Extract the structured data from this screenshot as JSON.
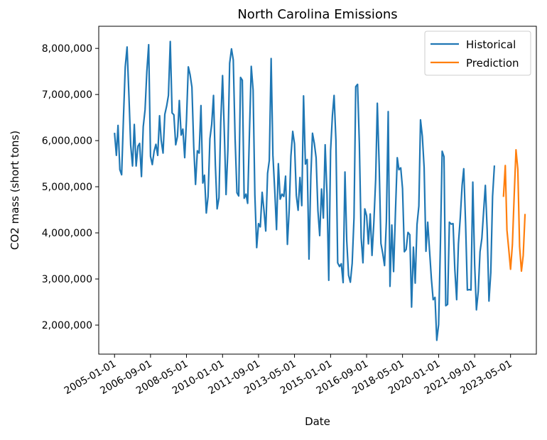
{
  "chart_data": {
    "type": "line",
    "title": "North Carolina Emissions",
    "xlabel": "Date",
    "ylabel": "CO2 mass (short tons)",
    "x_tick_labels": [
      "2005-01-01",
      "2006-09-01",
      "2008-05-01",
      "2010-01-01",
      "2011-09-01",
      "2013-05-01",
      "2015-01-01",
      "2016-09-01",
      "2018-05-01",
      "2020-01-01",
      "2021-09-01",
      "2023-05-01"
    ],
    "y_ticks": [
      2000000,
      3000000,
      4000000,
      5000000,
      6000000,
      7000000,
      8000000
    ],
    "y_tick_labels": [
      "2,000,000",
      "3,000,000",
      "4,000,000",
      "5,000,000",
      "6,000,000",
      "7,000,000",
      "8,000,000"
    ],
    "xlim": [
      "2004-04-09",
      "2024-07-10"
    ],
    "ylim": [
      1370000,
      8480000
    ],
    "grid": false,
    "legend_position": "top-right",
    "series": [
      {
        "name": "Historical",
        "color": "#1f77b4",
        "start": "2005-01",
        "frequency": "monthly",
        "values": [
          6170000,
          5680000,
          6330000,
          5370000,
          5260000,
          6500000,
          7600000,
          8030000,
          6980000,
          5900000,
          5450000,
          6350000,
          5450000,
          5880000,
          5940000,
          5220000,
          6300000,
          6670000,
          7500000,
          8080000,
          5660000,
          5480000,
          5770000,
          5920000,
          5680000,
          6540000,
          6000000,
          5730000,
          6570000,
          6750000,
          6980000,
          8150000,
          6600000,
          6560000,
          5910000,
          6090000,
          6870000,
          6120000,
          6250000,
          5630000,
          6450000,
          7600000,
          7430000,
          7160000,
          5860000,
          5050000,
          5780000,
          5730000,
          6760000,
          5080000,
          5250000,
          4430000,
          4790000,
          6040000,
          6350000,
          6980000,
          5480000,
          4520000,
          4760000,
          6400000,
          7410000,
          6120000,
          4830000,
          5800000,
          7680000,
          7990000,
          7750000,
          6040000,
          4870000,
          4800000,
          7370000,
          7310000,
          4750000,
          4840000,
          4640000,
          6200000,
          7610000,
          7100000,
          4820000,
          3680000,
          4200000,
          4130000,
          4880000,
          4500000,
          4040000,
          5290000,
          5570000,
          7780000,
          5680000,
          4920000,
          4070000,
          5500000,
          4730000,
          4840000,
          4790000,
          5230000,
          3750000,
          4520000,
          5660000,
          6200000,
          5930000,
          4810000,
          4490000,
          5200000,
          4590000,
          6970000,
          5490000,
          5590000,
          3430000,
          5230000,
          6160000,
          5940000,
          5630000,
          4480000,
          3940000,
          4950000,
          4320000,
          5910000,
          4850000,
          2970000,
          5780000,
          6550000,
          6980000,
          6010000,
          3350000,
          3270000,
          3330000,
          2920000,
          5320000,
          3830000,
          3080000,
          2930000,
          3340000,
          4330000,
          7170000,
          7220000,
          5940000,
          3890000,
          3350000,
          4520000,
          4370000,
          3760000,
          4410000,
          3510000,
          4220000,
          5160000,
          6810000,
          5480000,
          3770000,
          3550000,
          3290000,
          4250000,
          6630000,
          2840000,
          4170000,
          3160000,
          4430000,
          5630000,
          5370000,
          5410000,
          4960000,
          3590000,
          3640000,
          4010000,
          3960000,
          2390000,
          3690000,
          2910000,
          4180000,
          4580000,
          6450000,
          6090000,
          5420000,
          3600000,
          4230000,
          3610000,
          3000000,
          2550000,
          2600000,
          1670000,
          2010000,
          3790000,
          5770000,
          5650000,
          2420000,
          2450000,
          4230000,
          4190000,
          4200000,
          3210000,
          2550000,
          3760000,
          4330000,
          5030000,
          5390000,
          4200000,
          2760000,
          2770000,
          2760000,
          5100000,
          3320000,
          2330000,
          2730000,
          3590000,
          3880000,
          4490000,
          5030000,
          4050000,
          2520000,
          3140000,
          4790000,
          5460000
        ]
      },
      {
        "name": "Prediction",
        "color": "#ff7f0e",
        "start": "2023-01",
        "frequency": "monthly",
        "values": [
          4780000,
          5460000,
          4060000,
          3640000,
          3210000,
          3740000,
          4790000,
          5800000,
          5380000,
          3700000,
          3170000,
          3510000,
          4410000
        ]
      }
    ]
  }
}
